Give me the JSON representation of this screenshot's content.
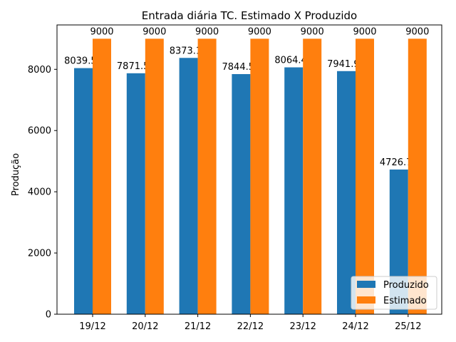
{
  "colors": {
    "produzido": "#1f77b4",
    "estimado": "#ff7f0e",
    "axis": "#000000",
    "legend_border": "#cccccc"
  },
  "chart_data": {
    "type": "bar",
    "title": "Entrada diária TC. Estimado X Produzido",
    "xlabel": "",
    "ylabel": "Produção",
    "categories": [
      "19/12",
      "20/12",
      "21/12",
      "22/12",
      "23/12",
      "24/12",
      "25/12"
    ],
    "series": [
      {
        "name": "Produzido",
        "values": [
          8039.52,
          7871.55,
          8373.15,
          7844.53,
          8064.49,
          7941.99,
          4726.75
        ],
        "labels": [
          "8039.52",
          "7871.55",
          "8373.15",
          "7844.53",
          "8064.49",
          "7941.99",
          "4726.75"
        ]
      },
      {
        "name": "Estimado",
        "values": [
          9000,
          9000,
          9000,
          9000,
          9000,
          9000,
          9000
        ],
        "labels": [
          "9000",
          "9000",
          "9000",
          "9000",
          "9000",
          "9000",
          "9000"
        ]
      }
    ],
    "ylim": [
      0,
      9450
    ],
    "yticks": [
      0,
      2000,
      4000,
      6000,
      8000
    ],
    "ytick_labels": [
      "0",
      "2000",
      "4000",
      "6000",
      "8000"
    ],
    "legend_position": "lower-right",
    "grid": false
  }
}
